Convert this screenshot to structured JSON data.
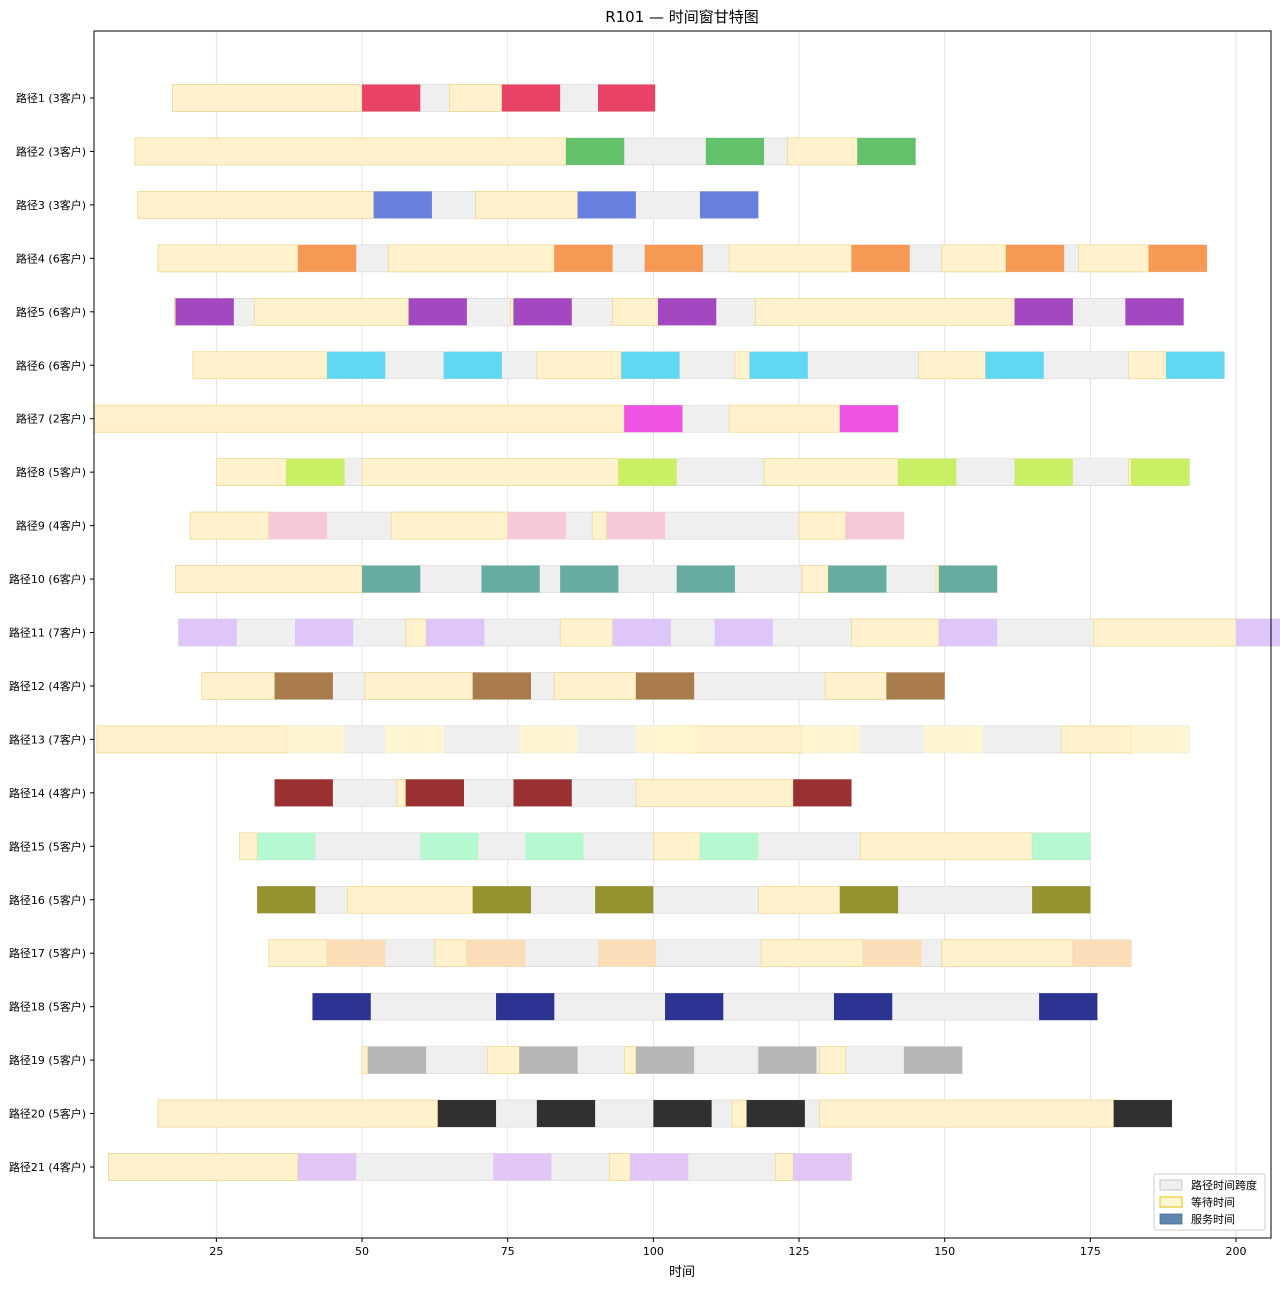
{
  "chart_data": {
    "type": "gantt",
    "title": "R101 — 时间窗甘特图",
    "xlabel": "时间",
    "xlim": [
      4,
      206
    ],
    "xticks": [
      25,
      50,
      75,
      100,
      125,
      150,
      175,
      200
    ],
    "grid": "x",
    "legend": {
      "position": "bottom-right",
      "entries": [
        {
          "label": "路径时间跨度",
          "kind": "span"
        },
        {
          "label": "等待时间",
          "kind": "wait"
        },
        {
          "label": "服务时间",
          "kind": "service"
        }
      ]
    },
    "colors": {
      "span": "#efefef",
      "wait": "#fff2cc",
      "wait_border": "#f0d68a"
    },
    "routes": [
      {
        "label": "路径1 (3客户)",
        "color": "#e8385f",
        "start": 17.5,
        "end": 100.3,
        "waits": [
          [
            17.5,
            50
          ],
          [
            65,
            74
          ]
        ],
        "services": [
          [
            50,
            60
          ],
          [
            74,
            84
          ],
          [
            90.5,
            100.3
          ]
        ]
      },
      {
        "label": "路径2 (3客户)",
        "color": "#5bbe64",
        "start": 11,
        "end": 145,
        "waits": [
          [
            11,
            85
          ],
          [
            123,
            135
          ]
        ],
        "services": [
          [
            85,
            95
          ],
          [
            109,
            119
          ],
          [
            135,
            145
          ]
        ]
      },
      {
        "label": "路径3 (3客户)",
        "color": "#5f79de",
        "start": 11.5,
        "end": 118,
        "waits": [
          [
            11.5,
            52
          ],
          [
            69.5,
            87
          ]
        ],
        "services": [
          [
            52,
            62
          ],
          [
            87,
            97
          ],
          [
            108,
            118
          ]
        ]
      },
      {
        "label": "路径4 (6客户)",
        "color": "#f5934c",
        "start": 15,
        "end": 195,
        "waits": [
          [
            15,
            39
          ],
          [
            54.5,
            83
          ],
          [
            113,
            134
          ],
          [
            149.5,
            160.5
          ],
          [
            173,
            185
          ]
        ],
        "services": [
          [
            39,
            49
          ],
          [
            83,
            93
          ],
          [
            98.5,
            108.5
          ],
          [
            134,
            144
          ],
          [
            160.5,
            170.5
          ],
          [
            185,
            195
          ]
        ]
      },
      {
        "label": "路径5 (6客户)",
        "color": "#9e3ebd",
        "start": 18,
        "end": 191,
        "waits": [
          [
            17.8,
            18
          ],
          [
            31.5,
            58
          ],
          [
            75.5,
            76
          ],
          [
            93,
            100.8
          ],
          [
            117.5,
            162
          ]
        ],
        "services": [
          [
            18,
            28
          ],
          [
            58,
            68
          ],
          [
            76,
            86
          ],
          [
            100.8,
            110.8
          ],
          [
            162,
            172
          ],
          [
            181,
            191
          ]
        ]
      },
      {
        "label": "路径6 (6客户)",
        "color": "#5ad5f0",
        "start": 21,
        "end": 198,
        "waits": [
          [
            21,
            44
          ],
          [
            80,
            94.5
          ],
          [
            114,
            116.5
          ],
          [
            145.5,
            157
          ],
          [
            181.5,
            188
          ]
        ],
        "services": [
          [
            44,
            54
          ],
          [
            64,
            74
          ],
          [
            94.5,
            104.5
          ],
          [
            116.5,
            126.5
          ],
          [
            157,
            167
          ],
          [
            188,
            198
          ]
        ]
      },
      {
        "label": "路径7 (2客户)",
        "color": "#ee4ae0",
        "start": 4,
        "end": 142,
        "waits": [
          [
            4,
            95
          ],
          [
            113,
            132
          ]
        ],
        "services": [
          [
            95,
            105
          ],
          [
            132,
            142
          ]
        ]
      },
      {
        "label": "路径8 (5客户)",
        "color": "#c6ee5c",
        "start": 25,
        "end": 192,
        "waits": [
          [
            25,
            37
          ],
          [
            50,
            94
          ],
          [
            119,
            142
          ],
          [
            181.5,
            182
          ]
        ],
        "services": [
          [
            37,
            47
          ],
          [
            94,
            104
          ],
          [
            142,
            152
          ],
          [
            162,
            172
          ],
          [
            182,
            192
          ]
        ]
      },
      {
        "label": "路径9 (4客户)",
        "color": "#f7c5d7",
        "start": 20.5,
        "end": 143,
        "waits": [
          [
            20.5,
            34
          ],
          [
            55,
            75
          ],
          [
            89.5,
            92
          ],
          [
            125,
            133
          ]
        ],
        "services": [
          [
            34,
            44
          ],
          [
            75,
            85
          ],
          [
            92,
            102
          ],
          [
            133,
            143
          ]
        ]
      },
      {
        "label": "路径10 (6客户)",
        "color": "#5ea89b",
        "start": 18,
        "end": 159,
        "waits": [
          [
            18,
            50
          ],
          [
            125.5,
            130
          ],
          [
            148.5,
            149
          ]
        ],
        "services": [
          [
            50,
            60
          ],
          [
            70.5,
            80.5
          ],
          [
            84,
            94
          ],
          [
            104,
            114
          ],
          [
            130,
            140
          ],
          [
            149,
            159
          ]
        ]
      },
      {
        "label": "路径11 (7客户)",
        "color": "#dcc2fa",
        "start": 18.5,
        "end": 210,
        "waits": [
          [
            57.5,
            61
          ],
          [
            84,
            93
          ],
          [
            134,
            149
          ],
          [
            175.5,
            200
          ]
        ],
        "services": [
          [
            18.5,
            28.5
          ],
          [
            38.5,
            48.5
          ],
          [
            61,
            71
          ],
          [
            93,
            103
          ],
          [
            110.5,
            120.5
          ],
          [
            149,
            159
          ],
          [
            200,
            210
          ]
        ]
      },
      {
        "label": "路径12 (4客户)",
        "color": "#a57441",
        "start": 22.5,
        "end": 150,
        "waits": [
          [
            22.5,
            35
          ],
          [
            50.5,
            69
          ],
          [
            83,
            97
          ],
          [
            129.5,
            140
          ]
        ],
        "services": [
          [
            35,
            45
          ],
          [
            69,
            79
          ],
          [
            97,
            107
          ],
          [
            140,
            150
          ]
        ]
      },
      {
        "label": "路径13 (7客户)",
        "color": "#fff5cf",
        "start": 4.5,
        "end": 192,
        "waits": [
          [
            4.5,
            37
          ],
          [
            101.5,
            125.5
          ],
          [
            170,
            182
          ]
        ],
        "services": [
          [
            37,
            47
          ],
          [
            54,
            64
          ],
          [
            77,
            87
          ],
          [
            97,
            107
          ],
          [
            125.5,
            135.5
          ],
          [
            146.5,
            156.5
          ],
          [
            182,
            192
          ]
        ]
      },
      {
        "label": "路径14 (4客户)",
        "color": "#952526",
        "start": 35,
        "end": 134,
        "waits": [
          [
            56,
            57.5
          ],
          [
            97,
            124
          ]
        ],
        "services": [
          [
            35,
            45
          ],
          [
            57.5,
            67.5
          ],
          [
            76,
            86
          ],
          [
            124,
            134
          ]
        ]
      },
      {
        "label": "路径15 (5客户)",
        "color": "#b2f8cc",
        "start": 29,
        "end": 175,
        "waits": [
          [
            29,
            32
          ],
          [
            100,
            108
          ],
          [
            135.5,
            165
          ]
        ],
        "services": [
          [
            32,
            42
          ],
          [
            60,
            70
          ],
          [
            78,
            88
          ],
          [
            108,
            118
          ],
          [
            165,
            175
          ]
        ]
      },
      {
        "label": "路径16 (5客户)",
        "color": "#8f8d24",
        "start": 32,
        "end": 175,
        "waits": [
          [
            47.5,
            69
          ],
          [
            118,
            132
          ]
        ],
        "services": [
          [
            32,
            42
          ],
          [
            69,
            79
          ],
          [
            90,
            100
          ],
          [
            132,
            142
          ],
          [
            165,
            175
          ]
        ]
      },
      {
        "label": "路径17 (5客户)",
        "color": "#fbdbb4",
        "start": 34,
        "end": 182,
        "waits": [
          [
            34,
            44
          ],
          [
            62.5,
            68
          ],
          [
            118.5,
            136
          ],
          [
            149.5,
            172
          ]
        ],
        "services": [
          [
            44,
            54
          ],
          [
            68,
            78
          ],
          [
            90.5,
            100.5
          ],
          [
            136,
            146
          ],
          [
            172,
            182
          ]
        ]
      },
      {
        "label": "路径18 (5客户)",
        "color": "#22288a",
        "start": 41.5,
        "end": 176.2,
        "waits": [],
        "services": [
          [
            41.5,
            51.5
          ],
          [
            73,
            83
          ],
          [
            102,
            112
          ],
          [
            131,
            141
          ],
          [
            166.2,
            176.2
          ]
        ]
      },
      {
        "label": "路径19 (5客户)",
        "color": "#b2b2b2",
        "start": 50,
        "end": 153,
        "waits": [
          [
            50,
            51
          ],
          [
            71.5,
            77
          ],
          [
            95,
            97
          ],
          [
            128.5,
            133
          ]
        ],
        "services": [
          [
            51,
            61
          ],
          [
            77,
            87
          ],
          [
            97,
            107
          ],
          [
            118,
            128
          ],
          [
            143,
            153
          ]
        ]
      },
      {
        "label": "路径20 (5客户)",
        "color": "#252525",
        "start": 15,
        "end": 189,
        "waits": [
          [
            15,
            63
          ],
          [
            113.5,
            116
          ],
          [
            128.5,
            179
          ]
        ],
        "services": [
          [
            63,
            73
          ],
          [
            80,
            90
          ],
          [
            100,
            110
          ],
          [
            116,
            126
          ],
          [
            179,
            189
          ]
        ]
      },
      {
        "label": "路径21 (4客户)",
        "color": "#e3c2f7",
        "start": 6.5,
        "end": 134,
        "waits": [
          [
            6.5,
            39
          ],
          [
            92.5,
            96
          ],
          [
            121,
            124
          ]
        ],
        "services": [
          [
            39,
            49
          ],
          [
            72.5,
            82.5
          ],
          [
            96,
            106
          ],
          [
            124,
            134
          ]
        ]
      }
    ]
  }
}
